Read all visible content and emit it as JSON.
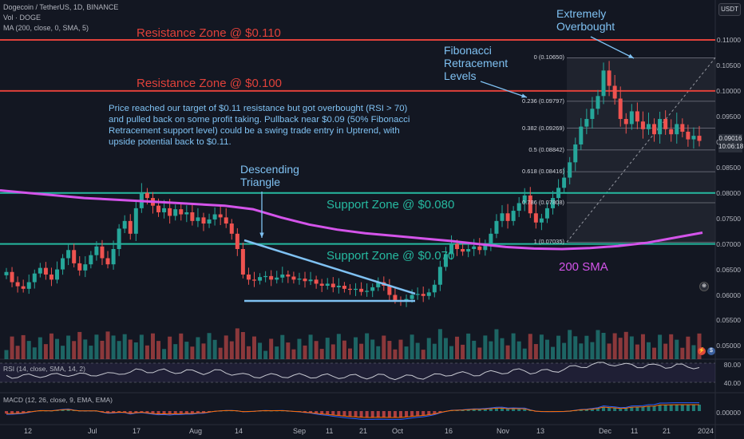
{
  "header": {
    "symbol_line": "Dogecoin / TetherUS, 1D, BINANCE",
    "vol_line": "Vol · DOGE",
    "ma_line": "MA (200, close, 0, SMA, 5)",
    "currency": "USDT"
  },
  "annotations": {
    "resistance_1": "Resistance Zone @ $0.110",
    "resistance_2": "Resistance Zone @ $0.100",
    "support_1": "Support Zone @ $0.080",
    "support_2": "Support Zone @ $0.070",
    "description": "Price reached our target of $0.11 resistance but got overbought (RSI > 70) and pulled back on some profit taking. Pullback near $0.09 (50% Fibonacci Retracement support level) could be a swing trade entry in Uptrend, with upside potential back to $0.11.",
    "descending_1": "Descending",
    "descending_2": "Triangle",
    "fib_1": "Fibonacci",
    "fib_2": "Retracement",
    "fib_3": "Levels",
    "over_1": "Extremely",
    "over_2": "Overbought",
    "sma": "200 SMA"
  },
  "price_tag": {
    "price": "0.09016",
    "timer": "10:06:18"
  },
  "indicators": {
    "rsi_label": "RSI (14, close, SMA, 14, 2)",
    "rsi_ticks": [
      "80.00",
      "40.00"
    ],
    "macd_label": "MACD (12, 26, close, 9, EMA, EMA)",
    "macd_tick": "0.00000"
  },
  "colors": {
    "background": "#131722",
    "resistance": "#e0413a",
    "support": "#26b9a0",
    "up_candle": "#26a69a",
    "down_candle": "#ef5350",
    "sma": "#d454ea",
    "annotation": "#7fc1f2"
  },
  "chart_data": {
    "type": "candlestick",
    "x_ticks": [
      "12",
      "Jul",
      "17",
      "Aug",
      "14",
      "Sep",
      "11",
      "21",
      "Oct",
      "16",
      "Nov",
      "13",
      "Dec",
      "11",
      "21",
      "2024"
    ],
    "y_ticks": [
      "0.11000",
      "0.10500",
      "0.10000",
      "0.09500",
      "0.09000",
      "0.08500",
      "0.08000",
      "0.07500",
      "0.07000",
      "0.06500",
      "0.06000",
      "0.05500",
      "0.05000"
    ],
    "ylim": [
      0.0475,
      0.1145
    ],
    "horizontal_levels": {
      "resistance": [
        0.11,
        0.1
      ],
      "support": [
        0.08,
        0.07
      ]
    },
    "fibonacci": [
      {
        "label": "0 (0.10650)",
        "value": 0.1065
      },
      {
        "label": "0.236 (0.09797)",
        "value": 0.09797
      },
      {
        "label": "0.382 (0.09269)",
        "value": 0.09269
      },
      {
        "label": "0.5 (0.08842)",
        "value": 0.08842
      },
      {
        "label": "0.618 (0.08416)",
        "value": 0.08416
      },
      {
        "label": "0.786 (0.07808)",
        "value": 0.07808
      },
      {
        "label": "1 (0.07035)",
        "value": 0.07035
      }
    ],
    "descending_triangle": {
      "upper": [
        [
          0.0717,
          "start"
        ],
        [
          0.0608,
          "end"
        ]
      ],
      "base": 0.0594
    },
    "sma_200": [
      0.0805,
      0.08,
      0.0795,
      0.079,
      0.0787,
      0.0784,
      0.0781,
      0.0778,
      0.0775,
      0.0768,
      0.0752,
      0.0738,
      0.0728,
      0.0721,
      0.0716,
      0.0711,
      0.0706,
      0.07,
      0.0694,
      0.0691,
      0.069,
      0.0692,
      0.0696,
      0.0702,
      0.0712,
      0.0722
    ],
    "close": [
      0.0645,
      0.0625,
      0.0617,
      0.0612,
      0.0625,
      0.0642,
      0.0653,
      0.064,
      0.063,
      0.065,
      0.0672,
      0.0688,
      0.0662,
      0.0648,
      0.066,
      0.0678,
      0.0695,
      0.0672,
      0.066,
      0.069,
      0.073,
      0.0745,
      0.072,
      0.077,
      0.08,
      0.079,
      0.0775,
      0.0762,
      0.077,
      0.0755,
      0.0768,
      0.0758,
      0.0762,
      0.0745,
      0.0752,
      0.074,
      0.0748,
      0.0758,
      0.0752,
      0.074,
      0.072,
      0.069,
      0.064,
      0.063,
      0.0628,
      0.0635,
      0.0637,
      0.063,
      0.0634,
      0.064,
      0.0636,
      0.063,
      0.0632,
      0.0627,
      0.063,
      0.0622,
      0.0618,
      0.0622,
      0.0615,
      0.0618,
      0.0612,
      0.061,
      0.0612,
      0.0606,
      0.0608,
      0.0615,
      0.0625,
      0.0618,
      0.06,
      0.059,
      0.0588,
      0.0592,
      0.06,
      0.0602,
      0.0598,
      0.0605,
      0.062,
      0.0655,
      0.068,
      0.07,
      0.069,
      0.0685,
      0.069,
      0.0695,
      0.0688,
      0.07,
      0.072,
      0.0745,
      0.076,
      0.0745,
      0.0765,
      0.078,
      0.0795,
      0.076,
      0.0742,
      0.075,
      0.077,
      0.079,
      0.081,
      0.083,
      0.086,
      0.0895,
      0.093,
      0.0945,
      0.0965,
      0.099,
      0.104,
      0.101,
      0.0985,
      0.0945,
      0.0935,
      0.096,
      0.094,
      0.0925,
      0.0935,
      0.0915,
      0.0945,
      0.0925,
      0.0915,
      0.0935,
      0.092,
      0.0905,
      0.0912,
      0.0902
    ]
  }
}
